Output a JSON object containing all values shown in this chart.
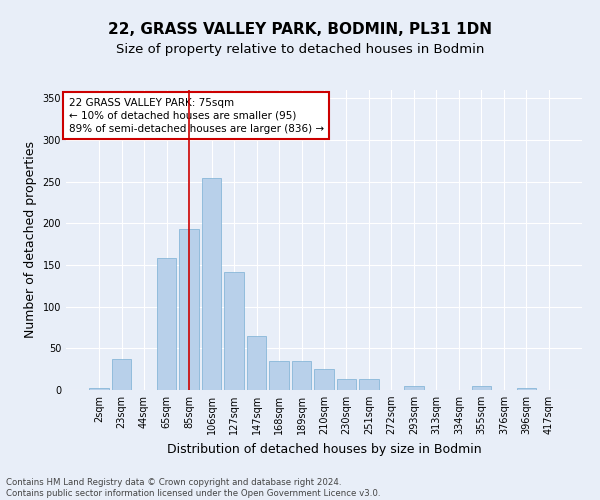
{
  "title1": "22, GRASS VALLEY PARK, BODMIN, PL31 1DN",
  "title2": "Size of property relative to detached houses in Bodmin",
  "xlabel": "Distribution of detached houses by size in Bodmin",
  "ylabel": "Number of detached properties",
  "categories": [
    "2sqm",
    "23sqm",
    "44sqm",
    "65sqm",
    "85sqm",
    "106sqm",
    "127sqm",
    "147sqm",
    "168sqm",
    "189sqm",
    "210sqm",
    "230sqm",
    "251sqm",
    "272sqm",
    "293sqm",
    "313sqm",
    "334sqm",
    "355sqm",
    "376sqm",
    "396sqm",
    "417sqm"
  ],
  "values": [
    2,
    37,
    0,
    158,
    193,
    255,
    142,
    65,
    35,
    35,
    25,
    13,
    13,
    0,
    5,
    0,
    0,
    5,
    0,
    2,
    0
  ],
  "bar_color": "#b8d0ea",
  "bar_edge_color": "#7aafd4",
  "vline_x": 4.0,
  "vline_color": "#cc0000",
  "annotation_text": "22 GRASS VALLEY PARK: 75sqm\n← 10% of detached houses are smaller (95)\n89% of semi-detached houses are larger (836) →",
  "annotation_box_color": "#ffffff",
  "annotation_box_edge": "#cc0000",
  "ylim": [
    0,
    360
  ],
  "yticks": [
    0,
    50,
    100,
    150,
    200,
    250,
    300,
    350
  ],
  "footnote": "Contains HM Land Registry data © Crown copyright and database right 2024.\nContains public sector information licensed under the Open Government Licence v3.0.",
  "bg_color": "#e8eef8",
  "grid_color": "#ffffff",
  "title_fontsize": 11,
  "subtitle_fontsize": 9.5,
  "tick_fontsize": 7,
  "label_fontsize": 9
}
